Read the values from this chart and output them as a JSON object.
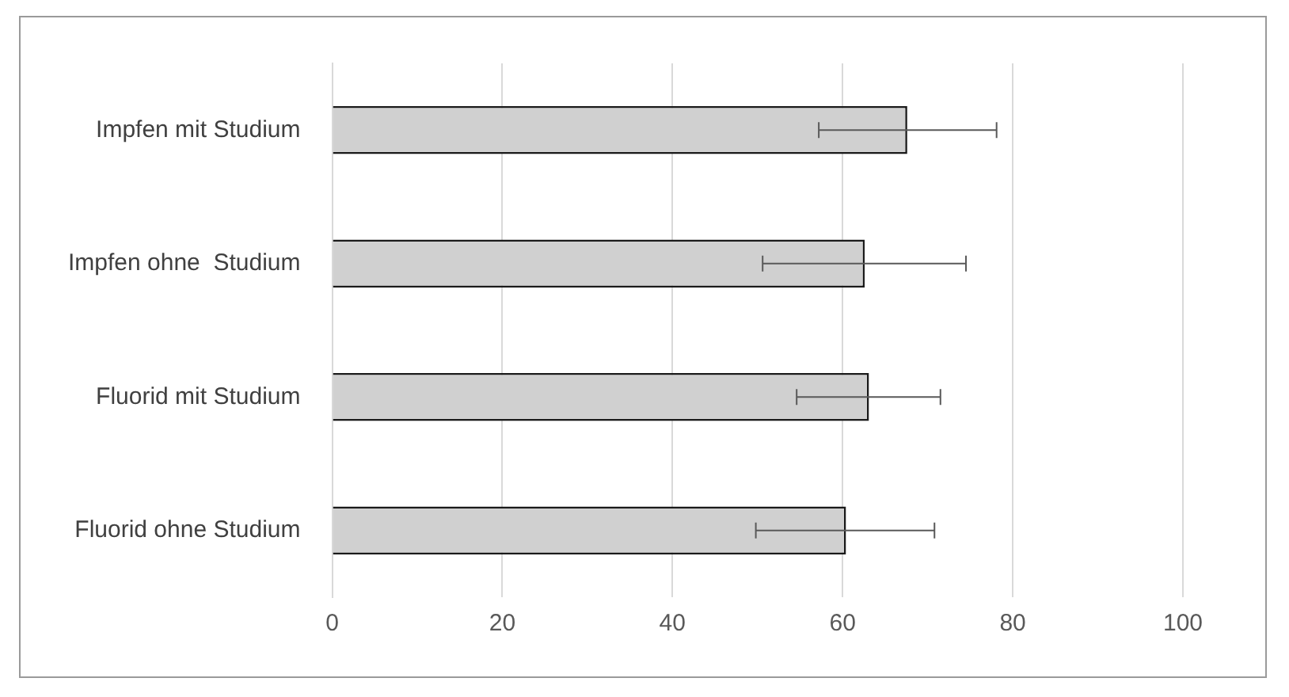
{
  "chart_data": {
    "type": "bar",
    "orientation": "horizontal",
    "categories": [
      "Impfen mit Studium",
      "Impfen ohne  Studium",
      "Fluorid mit Studium",
      "Fluorid ohne Studium"
    ],
    "values": [
      67.6,
      62.6,
      63.1,
      60.4
    ],
    "errors": [
      [
        57.2,
        78.1
      ],
      [
        50.6,
        74.5
      ],
      [
        54.6,
        71.5
      ],
      [
        49.8,
        70.8
      ]
    ],
    "color": "#d0d0d0",
    "xlim": [
      0,
      100
    ],
    "xticks": [
      0,
      20,
      40,
      60,
      80,
      100
    ],
    "grid": "x",
    "legend": false
  }
}
